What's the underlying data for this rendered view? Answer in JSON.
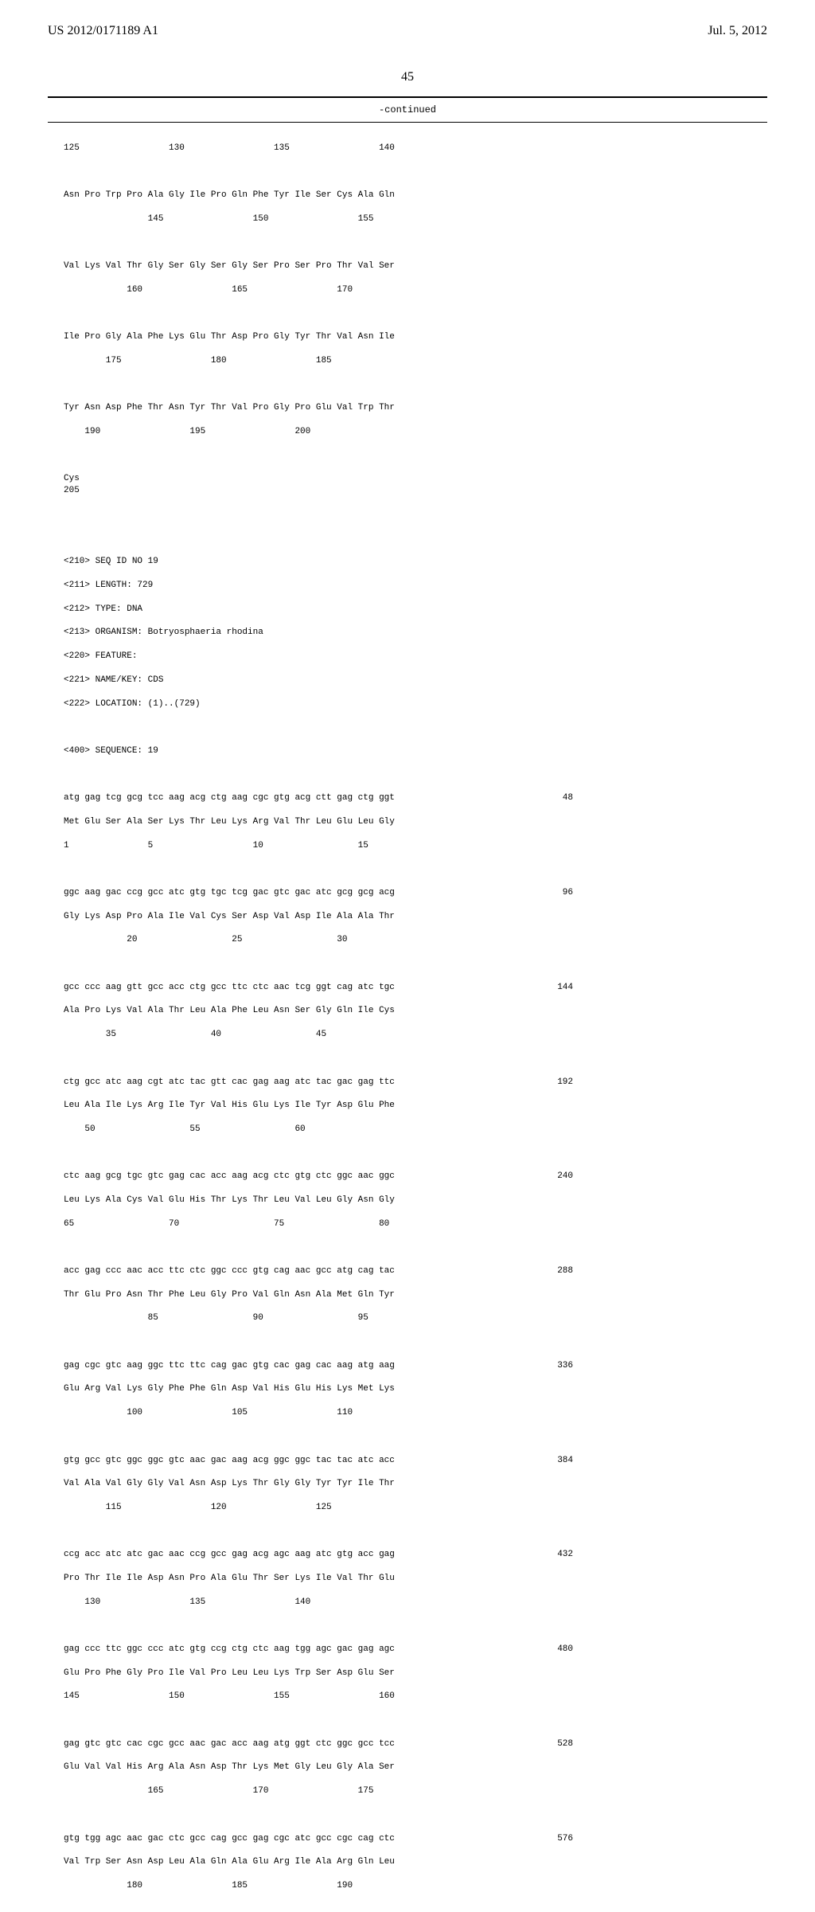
{
  "header": {
    "publication_number": "US 2012/0171189 A1",
    "publication_date": "Jul. 5, 2012"
  },
  "page_number": "45",
  "continued_label": "-continued",
  "position_row_1": "125                 130                 135                 140",
  "blocks_part1": [
    {
      "aa": "Asn Pro Trp Pro Ala Gly Ile Pro Gln Phe Tyr Ile Ser Cys Ala Gln",
      "pos": "                145                 150                 155"
    },
    {
      "aa": "Val Lys Val Thr Gly Ser Gly Ser Gly Ser Pro Ser Pro Thr Val Ser",
      "pos": "            160                 165                 170"
    },
    {
      "aa": "Ile Pro Gly Ala Phe Lys Glu Thr Asp Pro Gly Tyr Thr Val Asn Ile",
      "pos": "        175                 180                 185"
    },
    {
      "aa": "Tyr Asn Asp Phe Thr Asn Tyr Thr Val Pro Gly Pro Glu Val Trp Thr",
      "pos": "    190                 195                 200"
    }
  ],
  "cys_line": "Cys\n205",
  "metadata": {
    "seq_id": "<210> SEQ ID NO 19",
    "length": "<211> LENGTH: 729",
    "type": "<212> TYPE: DNA",
    "organism": "<213> ORGANISM: Botryosphaeria rhodina",
    "feature": "<220> FEATURE:",
    "name_key": "<221> NAME/KEY: CDS",
    "location": "<222> LOCATION: (1)..(729)",
    "sequence": "<400> SEQUENCE: 19"
  },
  "blocks_part2": [
    {
      "dna": "atg gag tcg gcg tcc aag acg ctg aag cgc gtg acg ctt gag ctg ggt",
      "aa": "Met Glu Ser Ala Ser Lys Thr Leu Lys Arg Val Thr Leu Glu Leu Gly",
      "pos": "1               5                   10                  15",
      "num": "48"
    },
    {
      "dna": "ggc aag gac ccg gcc atc gtg tgc tcg gac gtc gac atc gcg gcg acg",
      "aa": "Gly Lys Asp Pro Ala Ile Val Cys Ser Asp Val Asp Ile Ala Ala Thr",
      "pos": "            20                  25                  30",
      "num": "96"
    },
    {
      "dna": "gcc ccc aag gtt gcc acc ctg gcc ttc ctc aac tcg ggt cag atc tgc",
      "aa": "Ala Pro Lys Val Ala Thr Leu Ala Phe Leu Asn Ser Gly Gln Ile Cys",
      "pos": "        35                  40                  45",
      "num": "144"
    },
    {
      "dna": "ctg gcc atc aag cgt atc tac gtt cac gag aag atc tac gac gag ttc",
      "aa": "Leu Ala Ile Lys Arg Ile Tyr Val His Glu Lys Ile Tyr Asp Glu Phe",
      "pos": "    50                  55                  60",
      "num": "192"
    },
    {
      "dna": "ctc aag gcg tgc gtc gag cac acc aag acg ctc gtg ctc ggc aac ggc",
      "aa": "Leu Lys Ala Cys Val Glu His Thr Lys Thr Leu Val Leu Gly Asn Gly",
      "pos": "65                  70                  75                  80",
      "num": "240"
    },
    {
      "dna": "acc gag ccc aac acc ttc ctc ggc ccc gtg cag aac gcc atg cag tac",
      "aa": "Thr Glu Pro Asn Thr Phe Leu Gly Pro Val Gln Asn Ala Met Gln Tyr",
      "pos": "                85                  90                  95",
      "num": "288"
    },
    {
      "dna": "gag cgc gtc aag ggc ttc ttc cag gac gtg cac gag cac aag atg aag",
      "aa": "Glu Arg Val Lys Gly Phe Phe Gln Asp Val His Glu His Lys Met Lys",
      "pos": "            100                 105                 110",
      "num": "336"
    },
    {
      "dna": "gtg gcc gtc ggc ggc gtc aac gac aag acg ggc ggc tac tac atc acc",
      "aa": "Val Ala Val Gly Gly Val Asn Asp Lys Thr Gly Gly Tyr Tyr Ile Thr",
      "pos": "        115                 120                 125",
      "num": "384"
    },
    {
      "dna": "ccg acc atc atc gac aac ccg gcc gag acg agc aag atc gtg acc gag",
      "aa": "Pro Thr Ile Ile Asp Asn Pro Ala Glu Thr Ser Lys Ile Val Thr Glu",
      "pos": "    130                 135                 140",
      "num": "432"
    },
    {
      "dna": "gag ccc ttc ggc ccc atc gtg ccg ctg ctc aag tgg agc gac gag agc",
      "aa": "Glu Pro Phe Gly Pro Ile Val Pro Leu Leu Lys Trp Ser Asp Glu Ser",
      "pos": "145                 150                 155                 160",
      "num": "480"
    },
    {
      "dna": "gag gtc gtc cac cgc gcc aac gac acc aag atg ggt ctc ggc gcc tcc",
      "aa": "Glu Val Val His Arg Ala Asn Asp Thr Lys Met Gly Leu Gly Ala Ser",
      "pos": "                165                 170                 175",
      "num": "528"
    },
    {
      "dna": "gtg tgg agc aac gac ctc gcc cag gcc gag cgc atc gcc cgc cag ctc",
      "aa": "Val Trp Ser Asn Asp Leu Ala Gln Ala Glu Arg Ile Ala Arg Gln Leu",
      "pos": "            180                 185                 190",
      "num": "576"
    }
  ]
}
